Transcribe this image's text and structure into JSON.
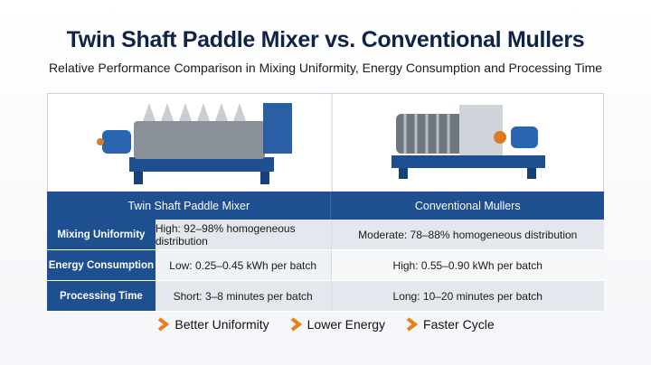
{
  "header": {
    "title": "Twin Shaft Paddle Mixer vs. Conventional Mullers",
    "subtitle": "Relative Performance Comparison in Mixing Uniformity, Energy Consumption and Processing Time"
  },
  "table": {
    "columns": [
      "Twin Shaft Paddle Mixer",
      "Conventional Mullers"
    ],
    "rows": [
      {
        "label": "Mixing Uniformity",
        "cells": [
          "High: 92–98% homogeneous distribution",
          "Moderate: 78–88% homogeneous distribution"
        ]
      },
      {
        "label": "Energy Consumption",
        "cells": [
          "Low: 0.25–0.45 kWh per batch",
          "High: 0.55–0.90 kWh per batch"
        ]
      },
      {
        "label": "Processing Time",
        "cells": [
          "Short: 3–8 minutes per batch",
          "Long: 10–20 minutes per batch"
        ]
      }
    ]
  },
  "footer": {
    "items": [
      "Better Uniformity",
      "Lower Energy",
      "Faster Cycle"
    ]
  }
}
